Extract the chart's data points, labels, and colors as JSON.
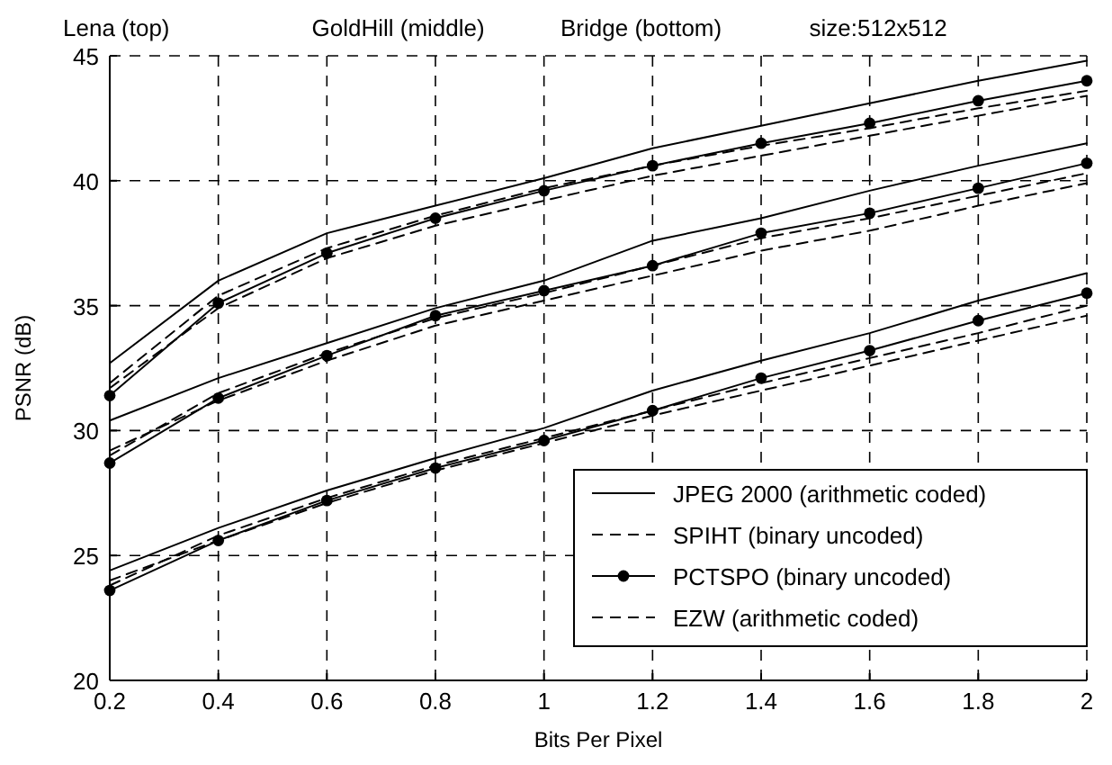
{
  "chart_data": {
    "type": "line",
    "annotations": [
      "Lena (top)",
      "GoldHill (middle)",
      "Bridge (bottom)",
      "size:512x512"
    ],
    "xlabel": "Bits Per Pixel",
    "ylabel": "PSNR (dB)",
    "x": [
      0.2,
      0.4,
      0.6,
      0.8,
      1.0,
      1.2,
      1.4,
      1.6,
      1.8,
      2.0
    ],
    "xlim": [
      0.2,
      2
    ],
    "xticks": [
      0.2,
      0.4,
      0.6,
      0.8,
      1,
      1.2,
      1.4,
      1.6,
      1.8,
      2
    ],
    "ylim": [
      20,
      45
    ],
    "yticks": [
      20,
      25,
      30,
      35,
      40,
      45
    ],
    "grid": true,
    "legend": "bottom right",
    "series": [
      {
        "name": "JPEG 2000 (arithmetic coded)",
        "color": "#000000",
        "line_style": "solid",
        "marker": "none",
        "values": [
          32.7,
          36.0,
          37.9,
          39.0,
          40.1,
          41.3,
          42.2,
          43.1,
          44.0,
          44.8
        ]
      },
      {
        "name": "SPIHT (binary uncoded)",
        "color": "#000000",
        "line_style": "dashed",
        "marker": "none",
        "values": [
          31.9,
          35.4,
          37.3,
          38.6,
          39.7,
          40.6,
          41.4,
          42.1,
          42.9,
          43.6
        ]
      },
      {
        "name": "PCTSPO (binary uncoded)",
        "color": "#000000",
        "line_style": "solid",
        "marker": "circle",
        "values": [
          31.4,
          35.1,
          37.1,
          38.5,
          39.6,
          40.6,
          41.5,
          42.3,
          43.2,
          44.0
        ]
      },
      {
        "name": "EZW (arithmetic coded)",
        "color": "#000000",
        "line_style": "dashed",
        "marker": "none",
        "values": [
          31.7,
          34.9,
          36.9,
          38.2,
          39.2,
          40.2,
          41.0,
          41.8,
          42.6,
          43.4
        ]
      },
      {
        "color": "#000000",
        "line_style": "solid",
        "marker": "none",
        "values": [
          30.4,
          32.1,
          33.5,
          34.9,
          36.0,
          37.6,
          38.5,
          39.6,
          40.6,
          41.5
        ]
      },
      {
        "color": "#000000",
        "line_style": "dashed",
        "marker": "none",
        "values": [
          29.0,
          31.5,
          33.1,
          34.5,
          35.5,
          36.6,
          37.7,
          38.5,
          39.4,
          40.3
        ]
      },
      {
        "color": "#000000",
        "line_style": "solid",
        "marker": "circle",
        "values": [
          28.7,
          31.3,
          33.0,
          34.6,
          35.6,
          36.6,
          37.9,
          38.7,
          39.7,
          40.7
        ]
      },
      {
        "color": "#000000",
        "line_style": "dashed",
        "marker": "none",
        "values": [
          29.2,
          31.2,
          32.8,
          34.2,
          35.2,
          36.2,
          37.2,
          38.0,
          39.0,
          39.9
        ]
      },
      {
        "color": "#000000",
        "line_style": "solid",
        "marker": "none",
        "values": [
          24.4,
          26.1,
          27.6,
          28.9,
          30.1,
          31.6,
          32.8,
          33.9,
          35.2,
          36.3
        ]
      },
      {
        "color": "#000000",
        "line_style": "dashed",
        "marker": "none",
        "values": [
          23.8,
          25.8,
          27.3,
          28.6,
          29.7,
          30.8,
          31.9,
          32.9,
          33.9,
          35.0
        ]
      },
      {
        "color": "#000000",
        "line_style": "solid",
        "marker": "circle",
        "values": [
          23.6,
          25.6,
          27.2,
          28.5,
          29.6,
          30.8,
          32.1,
          33.2,
          34.4,
          35.5
        ]
      },
      {
        "color": "#000000",
        "line_style": "dashed",
        "marker": "none",
        "values": [
          24.0,
          25.6,
          27.1,
          28.4,
          29.5,
          30.6,
          31.6,
          32.6,
          33.6,
          34.6
        ]
      }
    ]
  }
}
